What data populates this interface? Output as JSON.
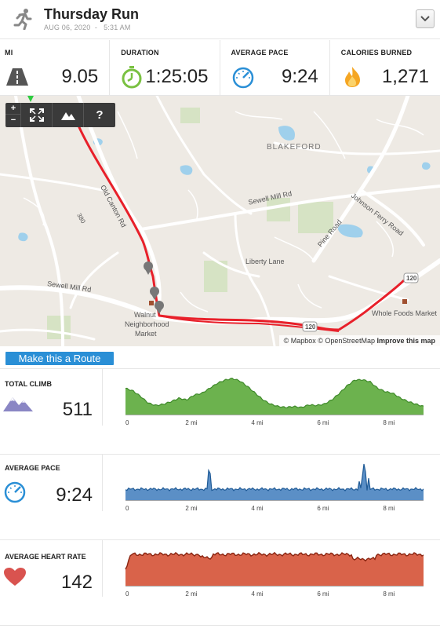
{
  "header": {
    "title": "Thursday Run",
    "date": "AUG 06, 2020",
    "time": "5:31 AM"
  },
  "stats": [
    {
      "label": "MI",
      "value": "9.05",
      "icon": "road-icon"
    },
    {
      "label": "DURATION",
      "value": "1:25:05",
      "icon": "stopwatch-icon"
    },
    {
      "label": "AVERAGE PACE",
      "value": "9:24",
      "icon": "speedometer-icon"
    },
    {
      "label": "CALORIES BURNED",
      "value": "1,271",
      "icon": "flame-icon"
    }
  ],
  "map": {
    "labels": {
      "blakeford": "BLAKEFORD",
      "sewell_mill_rd": "Sewell Mill Rd",
      "sewell_mill_rd_west": "Sewell Mill Rd",
      "johnson_ferry_rd": "Johnson Ferry Road",
      "pine_road": "Pine Road",
      "liberty_lane": "Liberty Lane",
      "old_canton_rd": "Old Canton Rd",
      "walnut": "Walnut",
      "neighborhood_market": "Neighborhood",
      "market": "Market",
      "whole_foods": "Whole Foods Market",
      "route_120_a": "120",
      "route_120_b": "120",
      "rd_number": "380"
    },
    "controls": {
      "zoom_in": "+",
      "zoom_out": "−",
      "help": "?"
    },
    "attribution": {
      "mapbox": "© Mapbox",
      "osm": "© OpenStreetMap",
      "improve": "Improve this map"
    }
  },
  "route_button": "Make this a Route",
  "charts": [
    {
      "label": "TOTAL CLIMB",
      "value": "511",
      "icon": "mountain-icon",
      "color": "#6cb24e",
      "stroke": "#3f8a2a",
      "xticks": [
        "0",
        "2 mi",
        "4 mi",
        "6 mi",
        "8 mi"
      ],
      "xmax": 9.05,
      "profile": [
        0.7,
        0.62,
        0.45,
        0.25,
        0.18,
        0.22,
        0.3,
        0.4,
        0.35,
        0.5,
        0.55,
        0.7,
        0.85,
        0.95,
        1.0,
        0.92,
        0.75,
        0.55,
        0.35,
        0.22,
        0.15,
        0.12,
        0.15,
        0.12,
        0.2,
        0.18,
        0.22,
        0.35,
        0.55,
        0.78,
        0.95,
        0.96,
        0.9,
        0.7,
        0.6,
        0.55,
        0.4,
        0.3,
        0.22,
        0.15
      ]
    },
    {
      "label": "AVERAGE PACE",
      "value": "9:24",
      "icon": "speedometer-icon",
      "color": "#5b8fc6",
      "stroke": "#1f5a96",
      "xticks": [
        "0",
        "2 mi",
        "4 mi",
        "6 mi",
        "8 mi"
      ],
      "xmax": 9.05
    },
    {
      "label": "AVERAGE HEART RATE",
      "value": "142",
      "icon": "heart-icon",
      "color": "#d9634a",
      "stroke": "#8a2410",
      "xticks": [
        "0",
        "2 mi",
        "4 mi",
        "6 mi",
        "8 mi"
      ],
      "xmax": 9.05
    }
  ]
}
